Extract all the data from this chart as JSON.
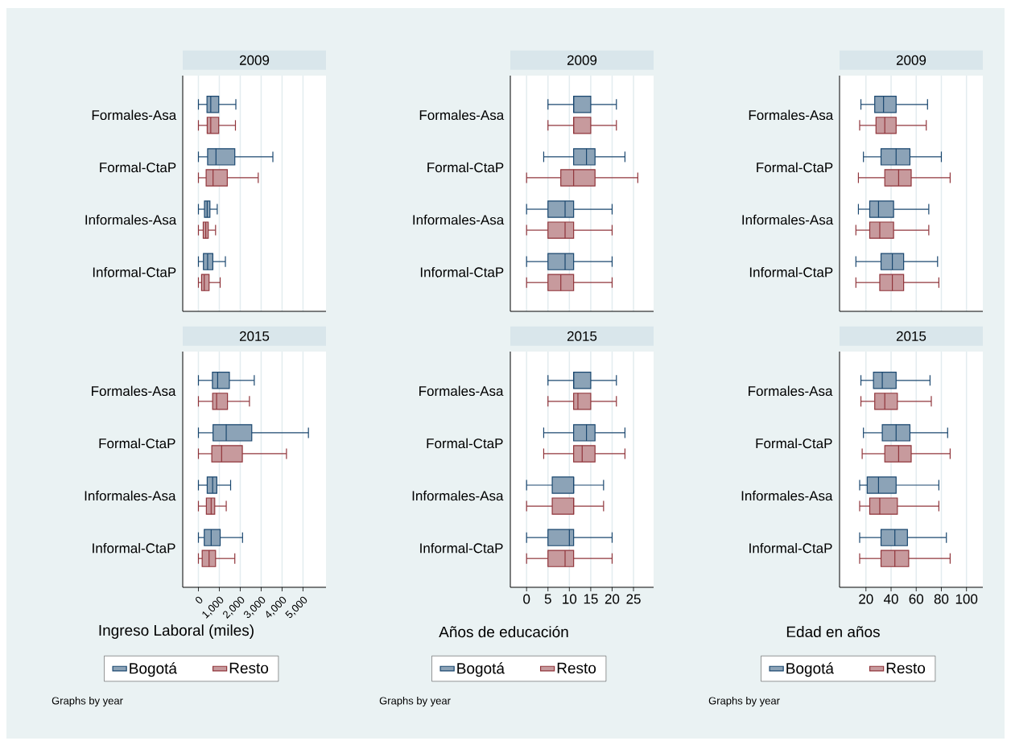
{
  "chart_data": [
    {
      "type": "box",
      "orientation": "horizontal",
      "title": "2009",
      "categories": [
        "Formales-Asa",
        "Formal-CtaP",
        "Informales-Asa",
        "Informal-CtaP"
      ],
      "series": [
        {
          "color": "#1a476f",
          "boxes": [
            {
              "low": 0,
              "q1": 410,
              "median": 590,
              "q3": 970,
              "high": 1790
            },
            {
              "low": 0,
              "q1": 440,
              "median": 840,
              "q3": 1740,
              "high": 3560
            },
            {
              "low": 0,
              "q1": 290,
              "median": 420,
              "q3": 550,
              "high": 900
            },
            {
              "low": 0,
              "q1": 240,
              "median": 440,
              "q3": 690,
              "high": 1290
            }
          ]
        },
        {
          "color": "#90353b",
          "boxes": [
            {
              "low": 0,
              "q1": 420,
              "median": 590,
              "q3": 970,
              "high": 1770
            },
            {
              "low": 0,
              "q1": 370,
              "median": 700,
              "q3": 1380,
              "high": 2860
            },
            {
              "low": 0,
              "q1": 230,
              "median": 350,
              "q3": 470,
              "high": 820
            },
            {
              "low": 0,
              "q1": 150,
              "median": 280,
              "q3": 510,
              "high": 1040
            }
          ]
        }
      ],
      "xlim": [
        -750,
        6100
      ],
      "xticks": [
        0,
        1000,
        2000,
        3000,
        4000,
        5000
      ],
      "grid": "x",
      "tick_labels": "y"
    },
    {
      "type": "box",
      "orientation": "horizontal",
      "title": "2009",
      "categories": [
        "Formales-Asa",
        "Formal-CtaP",
        "Informales-Asa",
        "Informal-CtaP"
      ],
      "series": [
        {
          "color": "#1a476f",
          "boxes": [
            {
              "low": 5,
              "q1": 11,
              "median": 11,
              "q3": 15,
              "high": 21
            },
            {
              "low": 4,
              "q1": 11,
              "median": 14,
              "q3": 16,
              "high": 23
            },
            {
              "low": 0,
              "q1": 5,
              "median": 9,
              "q3": 11,
              "high": 20
            },
            {
              "low": 0,
              "q1": 5,
              "median": 9,
              "q3": 11,
              "high": 20
            }
          ]
        },
        {
          "color": "#90353b",
          "boxes": [
            {
              "low": 5,
              "q1": 11,
              "median": 11,
              "q3": 15,
              "high": 21
            },
            {
              "low": 0,
              "q1": 8,
              "median": 11,
              "q3": 16,
              "high": 26
            },
            {
              "low": 0,
              "q1": 5,
              "median": 9,
              "q3": 11,
              "high": 20
            },
            {
              "low": 0,
              "q1": 5,
              "median": 8,
              "q3": 11,
              "high": 20
            }
          ]
        }
      ],
      "xlim": [
        -3.8,
        29.7
      ],
      "xticks": [
        0,
        5,
        10,
        15,
        20,
        25
      ],
      "grid": "x",
      "tick_labels": "y"
    },
    {
      "type": "box",
      "orientation": "horizontal",
      "title": "2009",
      "categories": [
        "Formales-Asa",
        "Formal-CtaP",
        "Informales-Asa",
        "Informal-CtaP"
      ],
      "series": [
        {
          "color": "#1a476f",
          "boxes": [
            {
              "low": 16,
              "q1": 27,
              "median": 34,
              "q3": 44,
              "high": 69
            },
            {
              "low": 18,
              "q1": 32,
              "median": 44,
              "q3": 55,
              "high": 80
            },
            {
              "low": 14,
              "q1": 23,
              "median": 30,
              "q3": 42,
              "high": 70
            },
            {
              "low": 12,
              "q1": 32,
              "median": 41,
              "q3": 50,
              "high": 77
            }
          ]
        },
        {
          "color": "#90353b",
          "boxes": [
            {
              "low": 15,
              "q1": 28,
              "median": 35,
              "q3": 44,
              "high": 68
            },
            {
              "low": 14,
              "q1": 35,
              "median": 46,
              "q3": 56,
              "high": 87
            },
            {
              "low": 12,
              "q1": 23,
              "median": 31,
              "q3": 42,
              "high": 70
            },
            {
              "low": 12,
              "q1": 31,
              "median": 41,
              "q3": 50,
              "high": 78
            }
          ]
        }
      ],
      "xlim": [
        -1,
        113
      ],
      "xticks": [
        20,
        40,
        60,
        80,
        100
      ],
      "grid": "x",
      "tick_labels": "y"
    },
    {
      "type": "box",
      "orientation": "horizontal",
      "title": "2015",
      "categories": [
        "Formales-Asa",
        "Formal-CtaP",
        "Informales-Asa",
        "Informal-CtaP"
      ],
      "xlabel": "Ingreso Laboral (miles)",
      "series": [
        {
          "name": "Bogotá",
          "color": "#1a476f",
          "boxes": [
            {
              "low": 0,
              "q1": 670,
              "median": 920,
              "q3": 1480,
              "high": 2670
            },
            {
              "low": 0,
              "q1": 700,
              "median": 1330,
              "q3": 2550,
              "high": 5260
            },
            {
              "low": 0,
              "q1": 420,
              "median": 680,
              "q3": 880,
              "high": 1540
            },
            {
              "low": 0,
              "q1": 280,
              "median": 610,
              "q3": 1040,
              "high": 2110
            }
          ]
        },
        {
          "name": "Resto",
          "color": "#90353b",
          "boxes": [
            {
              "low": 0,
              "q1": 680,
              "median": 870,
              "q3": 1390,
              "high": 2440
            },
            {
              "low": 0,
              "q1": 640,
              "median": 1110,
              "q3": 2100,
              "high": 4210
            },
            {
              "low": 0,
              "q1": 380,
              "median": 610,
              "q3": 780,
              "high": 1330
            },
            {
              "low": 0,
              "q1": 180,
              "median": 510,
              "q3": 820,
              "high": 1740
            }
          ]
        }
      ],
      "xlim": [
        -750,
        6100
      ],
      "xticks": [
        0,
        {
          "value": 1000,
          "label": "1,000"
        },
        {
          "value": 2000,
          "label": "2,000"
        },
        {
          "value": 3000,
          "label": "3,000"
        },
        {
          "value": 4000,
          "label": "4,000"
        },
        {
          "value": 5000,
          "label": "5,000"
        }
      ],
      "grid": "x",
      "legend": "bottom",
      "annotations": [
        "Graphs by year"
      ]
    },
    {
      "type": "box",
      "orientation": "horizontal",
      "title": "2015",
      "categories": [
        "Formales-Asa",
        "Formal-CtaP",
        "Informales-Asa",
        "Informal-CtaP"
      ],
      "xlabel": "Años de educación",
      "series": [
        {
          "name": "Bogotá",
          "color": "#1a476f",
          "boxes": [
            {
              "low": 5,
              "q1": 11,
              "median": 11,
              "q3": 15,
              "high": 21
            },
            {
              "low": 4,
              "q1": 11,
              "median": 14,
              "q3": 16,
              "high": 23
            },
            {
              "low": 0,
              "q1": 6,
              "median": 11,
              "q3": 11,
              "high": 18
            },
            {
              "low": 0,
              "q1": 5,
              "median": 10,
              "q3": 11,
              "high": 20
            }
          ]
        },
        {
          "name": "Resto",
          "color": "#90353b",
          "boxes": [
            {
              "low": 5,
              "q1": 11,
              "median": 12,
              "q3": 15,
              "high": 21
            },
            {
              "low": 4,
              "q1": 11,
              "median": 13,
              "q3": 16,
              "high": 23
            },
            {
              "low": 0,
              "q1": 6,
              "median": 11,
              "q3": 11,
              "high": 18
            },
            {
              "low": 0,
              "q1": 5,
              "median": 9,
              "q3": 11,
              "high": 20
            }
          ]
        }
      ],
      "xlim": [
        -3.8,
        29.7
      ],
      "xticks": [
        0,
        5,
        10,
        15,
        20,
        25
      ],
      "grid": "x",
      "legend": "bottom",
      "annotations": [
        "Graphs by year"
      ]
    },
    {
      "type": "box",
      "orientation": "horizontal",
      "title": "2015",
      "categories": [
        "Formales-Asa",
        "Formal-CtaP",
        "Informales-Asa",
        "Informal-CtaP"
      ],
      "xlabel": "Edad en años",
      "series": [
        {
          "name": "Bogotá",
          "color": "#1a476f",
          "boxes": [
            {
              "low": 16,
              "q1": 26,
              "median": 33,
              "q3": 44,
              "high": 71
            },
            {
              "low": 18,
              "q1": 33,
              "median": 44,
              "q3": 55,
              "high": 85
            },
            {
              "low": 15,
              "q1": 21,
              "median": 30,
              "q3": 44,
              "high": 78
            },
            {
              "low": 15,
              "q1": 32,
              "median": 43,
              "q3": 53,
              "high": 84
            }
          ]
        },
        {
          "name": "Resto",
          "color": "#90353b",
          "boxes": [
            {
              "low": 16,
              "q1": 27,
              "median": 35,
              "q3": 45,
              "high": 72
            },
            {
              "low": 17,
              "q1": 35,
              "median": 46,
              "q3": 56,
              "high": 87
            },
            {
              "low": 15,
              "q1": 23,
              "median": 31,
              "q3": 45,
              "high": 78
            },
            {
              "low": 15,
              "q1": 32,
              "median": 43,
              "q3": 54,
              "high": 87
            }
          ]
        }
      ],
      "xlim": [
        -1,
        113
      ],
      "xticks": [
        20,
        40,
        60,
        80,
        100
      ],
      "grid": "x",
      "legend": "bottom",
      "annotations": [
        "Graphs by year"
      ]
    }
  ]
}
